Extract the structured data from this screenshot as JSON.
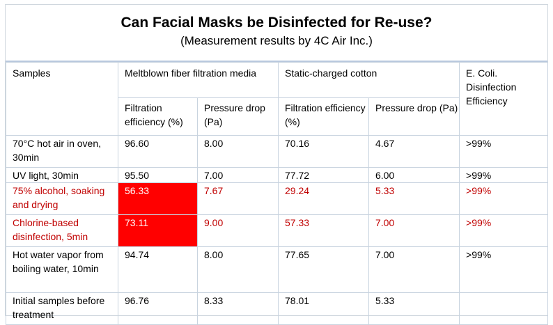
{
  "title": "Can Facial Masks be Disinfected for Re-use?",
  "subtitle": "(Measurement results by 4C Air Inc.)",
  "headers": {
    "samples": "Samples",
    "meltblown": "Meltblown fiber filtration media",
    "cotton": "Static-charged cotton",
    "ecoli": "E. Coli. Disinfection Efficiency",
    "filtration": "Filtration efficiency (%)",
    "pressure": "Pressure drop (Pa)"
  },
  "rows": [
    {
      "sample": "70°C hot air in oven, 30min",
      "mb_filtration": "96.60",
      "mb_pressure": "8.00",
      "cot_filtration": "70.16",
      "cot_pressure": "4.67",
      "ecoli": ">99%"
    },
    {
      "sample": "UV light, 30min",
      "mb_filtration": "95.50",
      "mb_pressure": "7.00",
      "cot_filtration": "77.72",
      "cot_pressure": "6.00",
      "ecoli": ">99%"
    },
    {
      "sample": "75% alcohol, soaking and drying",
      "mb_filtration": "56.33",
      "mb_pressure": "7.67",
      "cot_filtration": "29.24",
      "cot_pressure": "5.33",
      "ecoli": ">99%"
    },
    {
      "sample": "Chlorine-based disinfection, 5min",
      "mb_filtration": "73.11",
      "mb_pressure": "9.00",
      "cot_filtration": "57.33",
      "cot_pressure": "7.00",
      "ecoli": ">99%"
    },
    {
      "sample": "Hot water vapor from boiling water, 10min",
      "mb_filtration": "94.74",
      "mb_pressure": "8.00",
      "cot_filtration": "77.65",
      "cot_pressure": "7.00",
      "ecoli": ">99%"
    },
    {
      "sample": "Initial samples before treatment",
      "mb_filtration": "96.76",
      "mb_pressure": "8.33",
      "cot_filtration": "78.01",
      "cot_pressure": "5.33",
      "ecoli": ""
    }
  ],
  "colors": {
    "highlight": "#ff0000",
    "warning_text": "#c00000",
    "grid": "#c8d3df"
  }
}
